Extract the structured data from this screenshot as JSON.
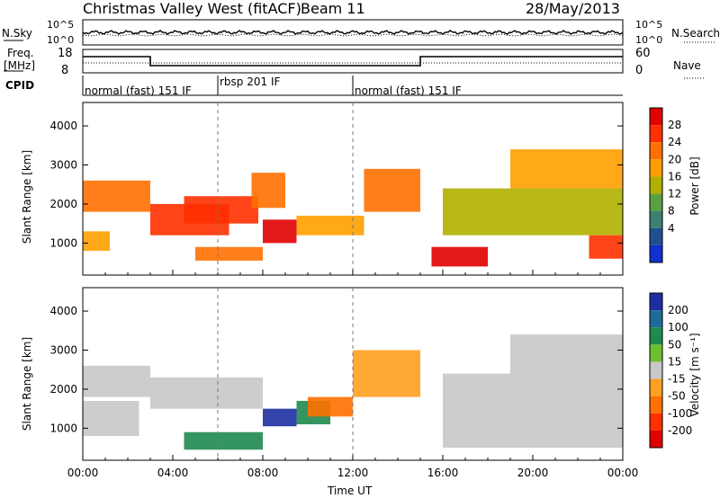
{
  "header": {
    "station": "Christmas Valley West (fitACF)",
    "beam": "Beam 11",
    "date": "28/May/2013"
  },
  "noise_panel": {
    "left_label": "N.Sky",
    "right_label": "N.Search",
    "left_ticks": [
      "10^5",
      "10^0"
    ],
    "right_ticks": [
      "10^5",
      "10^0"
    ]
  },
  "freq_panel": {
    "left_label_1": "Freq.",
    "left_label_2": "[MHz]",
    "left_ticks": [
      "18",
      "8"
    ],
    "right_label": "Nave",
    "right_ticks": [
      "60",
      "0"
    ]
  },
  "cpid": {
    "label": "CPID",
    "segments": [
      {
        "name": "normal (fast) 151 IF",
        "start_hour": 0
      },
      {
        "name": "rbsp 201 IF",
        "start_hour": 6
      },
      {
        "name": "normal (fast) 151 IF",
        "start_hour": 12
      }
    ]
  },
  "power_colorbar": {
    "label": "Power [dB]",
    "ticks": [
      "28",
      "24",
      "20",
      "16",
      "12",
      "8",
      "4"
    ],
    "colors": [
      "#e00000",
      "#ff3000",
      "#ff7000",
      "#ffa000",
      "#b0b000",
      "#5aa040",
      "#3c8070",
      "#205090",
      "#1030d0"
    ]
  },
  "velocity_colorbar": {
    "label": "Velocity [m s⁻¹]",
    "ticks": [
      "200",
      "100",
      "50",
      "15",
      "-15",
      "-50",
      "-100",
      "-200"
    ],
    "colors": [
      "#1d2fa0",
      "#1f6c9a",
      "#1f8a50",
      "#6cc030",
      "#c8c8c8",
      "#ffa020",
      "#ff7000",
      "#ff3000",
      "#e00000"
    ]
  },
  "chart_data": [
    {
      "type": "heatmap",
      "name": "power",
      "ylabel": "Slant Range [km]",
      "xlabel": "Time UT",
      "x_ticks": [
        "00:00",
        "04:00",
        "08:00",
        "12:00",
        "16:00",
        "20:00",
        "00:00"
      ],
      "y_ticks": [
        1000,
        2000,
        3000,
        4000
      ],
      "xlim": [
        0,
        24
      ],
      "ylim": [
        180,
        4600
      ],
      "regions": [
        {
          "t0": 0.0,
          "t1": 3.0,
          "r0": 1800,
          "r1": 2600,
          "level": 6
        },
        {
          "t0": 0.0,
          "t1": 1.2,
          "r0": 800,
          "r1": 1300,
          "level": 5
        },
        {
          "t0": 3.0,
          "t1": 6.5,
          "r0": 1200,
          "r1": 2000,
          "level": 7
        },
        {
          "t0": 4.5,
          "t1": 7.8,
          "r0": 1500,
          "r1": 2200,
          "level": 7
        },
        {
          "t0": 5.0,
          "t1": 8.0,
          "r0": 550,
          "r1": 900,
          "level": 6
        },
        {
          "t0": 8.0,
          "t1": 9.5,
          "r0": 1000,
          "r1": 1600,
          "level": 8
        },
        {
          "t0": 9.5,
          "t1": 12.5,
          "r0": 1200,
          "r1": 1700,
          "level": 5
        },
        {
          "t0": 7.5,
          "t1": 9.0,
          "r0": 1900,
          "r1": 2800,
          "level": 6
        },
        {
          "t0": 12.5,
          "t1": 15.0,
          "r0": 1800,
          "r1": 2900,
          "level": 6
        },
        {
          "t0": 15.5,
          "t1": 18.0,
          "r0": 400,
          "r1": 900,
          "level": 8
        },
        {
          "t0": 16.0,
          "t1": 24.0,
          "r0": 1200,
          "r1": 2400,
          "level": 4
        },
        {
          "t0": 19.0,
          "t1": 24.0,
          "r0": 2400,
          "r1": 3400,
          "level": 5
        },
        {
          "t0": 22.5,
          "t1": 24.0,
          "r0": 600,
          "r1": 1200,
          "level": 7
        }
      ]
    },
    {
      "type": "heatmap",
      "name": "velocity",
      "ylabel": "Slant Range [km]",
      "xlabel": "Time UT",
      "x_ticks": [
        "00:00",
        "04:00",
        "08:00",
        "12:00",
        "16:00",
        "20:00",
        "00:00"
      ],
      "y_ticks": [
        1000,
        2000,
        3000,
        4000
      ],
      "xlim": [
        0,
        24
      ],
      "ylim": [
        180,
        4600
      ],
      "regions": [
        {
          "t0": 0.0,
          "t1": 3.0,
          "r0": 1800,
          "r1": 2600,
          "level": 4
        },
        {
          "t0": 0.0,
          "t1": 2.5,
          "r0": 800,
          "r1": 1700,
          "level": 4
        },
        {
          "t0": 3.0,
          "t1": 8.0,
          "r0": 1500,
          "r1": 2300,
          "level": 4
        },
        {
          "t0": 4.5,
          "t1": 8.0,
          "r0": 450,
          "r1": 900,
          "level": 6
        },
        {
          "t0": 8.0,
          "t1": 9.5,
          "r0": 1050,
          "r1": 1500,
          "level": 8
        },
        {
          "t0": 9.5,
          "t1": 11.0,
          "r0": 1100,
          "r1": 1700,
          "level": 6
        },
        {
          "t0": 10.0,
          "t1": 12.0,
          "r0": 1300,
          "r1": 1800,
          "level": 2
        },
        {
          "t0": 12.0,
          "t1": 15.0,
          "r0": 1800,
          "r1": 3000,
          "level": 3
        },
        {
          "t0": 16.0,
          "t1": 24.0,
          "r0": 500,
          "r1": 2400,
          "level": 4
        },
        {
          "t0": 19.0,
          "t1": 24.0,
          "r0": 2400,
          "r1": 3400,
          "level": 4
        }
      ]
    }
  ]
}
